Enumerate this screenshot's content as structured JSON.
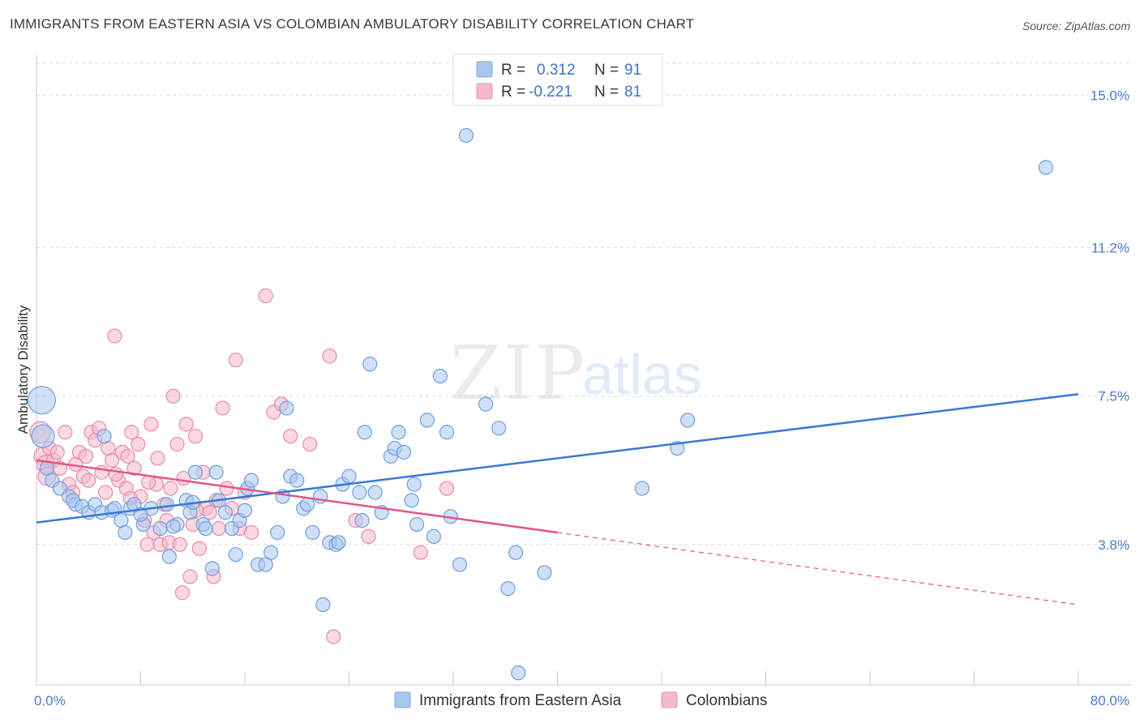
{
  "header": {
    "title": "IMMIGRANTS FROM EASTERN ASIA VS COLOMBIAN AMBULATORY DISABILITY CORRELATION CHART",
    "source": "Source: ZipAtlas.com"
  },
  "watermark": {
    "zip": "ZIP",
    "atlas": "atlas"
  },
  "legend": {
    "r_label": "R =",
    "n_label": "N =",
    "items": [
      {
        "r": "0.312",
        "n": "91",
        "color": "#a9c6ef"
      },
      {
        "r": "-0.221",
        "n": "81",
        "color": "#f6b8cb"
      }
    ]
  },
  "bottom_legend": [
    "Immigrants from Eastern Asia",
    "Colombians"
  ],
  "chart_data": {
    "type": "scatter",
    "title": "IMMIGRANTS FROM EASTERN ASIA VS COLOMBIAN AMBULATORY DISABILITY CORRELATION CHART",
    "xlabel": "",
    "ylabel": "Ambulatory Disability",
    "xlim": [
      0,
      80
    ],
    "ylim": [
      0.3,
      15.8
    ],
    "x_tick_labels": [
      "0.0%",
      "80.0%"
    ],
    "y_ticks": [
      3.8,
      7.5,
      11.2,
      15.0
    ],
    "y_tick_labels": [
      "3.8%",
      "7.5%",
      "11.2%",
      "15.0%"
    ],
    "grid": true,
    "colors": {
      "series1": "#3b78d6",
      "series1_fill": "#a9c6ef",
      "series2": "#e0568a",
      "series2_fill": "#f6b8cb"
    },
    "series": [
      {
        "name": "Immigrants from Eastern Asia",
        "trend": {
          "x": [
            0,
            80
          ],
          "y": [
            4.35,
            7.55
          ],
          "dashed_from": null
        },
        "points": [
          [
            0.4,
            7.4
          ],
          [
            0.5,
            6.5
          ],
          [
            0.8,
            5.7
          ],
          [
            1.2,
            5.4
          ],
          [
            1.8,
            5.2
          ],
          [
            2.5,
            5.0
          ],
          [
            3.0,
            4.8
          ],
          [
            2.8,
            4.9
          ],
          [
            3.5,
            4.75
          ],
          [
            4.0,
            4.6
          ],
          [
            4.5,
            4.8
          ],
          [
            5.0,
            4.6
          ],
          [
            5.2,
            6.5
          ],
          [
            5.8,
            4.65
          ],
          [
            6.5,
            4.4
          ],
          [
            6.8,
            4.1
          ],
          [
            7.2,
            4.7
          ],
          [
            7.5,
            4.8
          ],
          [
            8.2,
            4.3
          ],
          [
            8.8,
            4.7
          ],
          [
            9.5,
            4.2
          ],
          [
            10.0,
            4.8
          ],
          [
            10.2,
            3.5
          ],
          [
            10.8,
            4.3
          ],
          [
            11.5,
            4.9
          ],
          [
            11.8,
            4.6
          ],
          [
            12.2,
            5.6
          ],
          [
            12.8,
            4.3
          ],
          [
            13.0,
            4.2
          ],
          [
            13.5,
            3.2
          ],
          [
            13.8,
            5.6
          ],
          [
            14.0,
            4.9
          ],
          [
            14.5,
            4.6
          ],
          [
            15.0,
            4.2
          ],
          [
            15.3,
            3.55
          ],
          [
            15.6,
            4.4
          ],
          [
            16.2,
            5.2
          ],
          [
            16.5,
            5.4
          ],
          [
            17.0,
            3.3
          ],
          [
            17.6,
            3.3
          ],
          [
            18.0,
            3.6
          ],
          [
            18.5,
            4.1
          ],
          [
            18.9,
            5.0
          ],
          [
            19.2,
            7.2
          ],
          [
            19.5,
            5.5
          ],
          [
            20.0,
            5.4
          ],
          [
            20.5,
            4.7
          ],
          [
            20.8,
            4.8
          ],
          [
            21.2,
            4.1
          ],
          [
            21.8,
            5.0
          ],
          [
            22.0,
            2.3
          ],
          [
            22.5,
            3.85
          ],
          [
            23.0,
            3.8
          ],
          [
            23.2,
            3.85
          ],
          [
            23.5,
            5.3
          ],
          [
            24.0,
            5.5
          ],
          [
            24.8,
            5.1
          ],
          [
            25.0,
            4.4
          ],
          [
            25.2,
            6.6
          ],
          [
            25.6,
            8.3
          ],
          [
            26.0,
            5.1
          ],
          [
            26.5,
            4.6
          ],
          [
            27.2,
            6.0
          ],
          [
            27.5,
            6.2
          ],
          [
            27.8,
            6.6
          ],
          [
            28.2,
            6.1
          ],
          [
            28.8,
            4.9
          ],
          [
            29.0,
            5.3
          ],
          [
            29.2,
            4.3
          ],
          [
            30.0,
            6.9
          ],
          [
            30.5,
            4.0
          ],
          [
            31.0,
            8.0
          ],
          [
            31.5,
            6.6
          ],
          [
            31.8,
            4.5
          ],
          [
            32.5,
            3.3
          ],
          [
            33.0,
            14.0
          ],
          [
            34.5,
            7.3
          ],
          [
            35.5,
            6.7
          ],
          [
            36.2,
            2.7
          ],
          [
            36.8,
            3.6
          ],
          [
            37.0,
            0.6
          ],
          [
            39.0,
            3.1
          ],
          [
            46.5,
            5.2
          ],
          [
            49.2,
            6.2
          ],
          [
            50.0,
            6.9
          ],
          [
            77.5,
            13.2
          ],
          [
            10.5,
            4.25
          ],
          [
            8.0,
            4.55
          ],
          [
            6.0,
            4.7
          ],
          [
            12.0,
            4.85
          ],
          [
            16.0,
            4.65
          ]
        ]
      },
      {
        "name": "Colombians",
        "trend": {
          "x": [
            0,
            40,
            80
          ],
          "y": [
            5.9,
            4.1,
            2.3
          ],
          "dashed_from": 40
        },
        "points": [
          [
            0.3,
            6.6
          ],
          [
            0.5,
            6.0
          ],
          [
            0.7,
            5.8
          ],
          [
            0.8,
            5.5
          ],
          [
            1.0,
            6.2
          ],
          [
            1.3,
            5.9
          ],
          [
            1.6,
            6.1
          ],
          [
            1.8,
            5.7
          ],
          [
            2.2,
            6.6
          ],
          [
            2.5,
            5.3
          ],
          [
            2.8,
            5.1
          ],
          [
            3.0,
            5.8
          ],
          [
            3.3,
            6.1
          ],
          [
            3.6,
            5.5
          ],
          [
            4.0,
            5.4
          ],
          [
            4.2,
            6.6
          ],
          [
            4.5,
            6.4
          ],
          [
            4.8,
            6.7
          ],
          [
            5.0,
            5.6
          ],
          [
            5.3,
            5.1
          ],
          [
            5.5,
            6.2
          ],
          [
            5.8,
            5.9
          ],
          [
            6.0,
            9.0
          ],
          [
            6.3,
            5.4
          ],
          [
            6.6,
            6.1
          ],
          [
            6.9,
            5.2
          ],
          [
            7.0,
            6.0
          ],
          [
            7.3,
            6.6
          ],
          [
            7.5,
            5.7
          ],
          [
            7.8,
            6.3
          ],
          [
            8.0,
            5.0
          ],
          [
            8.3,
            4.4
          ],
          [
            8.5,
            3.8
          ],
          [
            8.8,
            6.8
          ],
          [
            9.0,
            4.1
          ],
          [
            9.2,
            5.3
          ],
          [
            9.5,
            3.8
          ],
          [
            9.8,
            4.8
          ],
          [
            10.0,
            4.4
          ],
          [
            10.2,
            3.85
          ],
          [
            10.5,
            7.5
          ],
          [
            10.8,
            6.3
          ],
          [
            11.0,
            3.8
          ],
          [
            11.2,
            2.6
          ],
          [
            11.5,
            6.8
          ],
          [
            11.8,
            3.0
          ],
          [
            12.0,
            4.3
          ],
          [
            12.2,
            6.5
          ],
          [
            12.5,
            3.7
          ],
          [
            12.8,
            5.6
          ],
          [
            13.0,
            4.7
          ],
          [
            13.3,
            4.6
          ],
          [
            13.6,
            3.0
          ],
          [
            14.0,
            4.2
          ],
          [
            14.3,
            7.2
          ],
          [
            14.6,
            5.2
          ],
          [
            15.0,
            4.7
          ],
          [
            15.3,
            8.4
          ],
          [
            15.6,
            4.2
          ],
          [
            16.0,
            5.1
          ],
          [
            16.5,
            4.1
          ],
          [
            17.6,
            10.0
          ],
          [
            18.2,
            7.1
          ],
          [
            18.8,
            7.3
          ],
          [
            19.5,
            6.5
          ],
          [
            21.0,
            6.3
          ],
          [
            22.5,
            8.5
          ],
          [
            22.8,
            1.5
          ],
          [
            24.5,
            4.4
          ],
          [
            25.5,
            4.0
          ],
          [
            29.5,
            3.6
          ],
          [
            31.5,
            5.2
          ],
          [
            12.3,
            4.65
          ],
          [
            11.3,
            5.45
          ],
          [
            13.8,
            4.9
          ],
          [
            9.3,
            5.95
          ],
          [
            8.6,
            5.35
          ],
          [
            10.3,
            5.2
          ],
          [
            7.2,
            4.95
          ],
          [
            6.1,
            5.55
          ],
          [
            3.8,
            6.0
          ]
        ]
      }
    ]
  }
}
